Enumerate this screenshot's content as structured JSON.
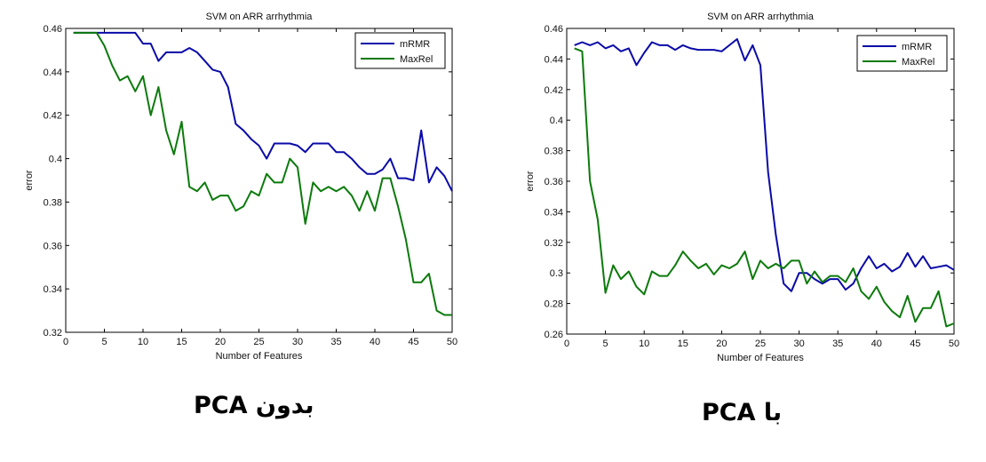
{
  "chart_data": [
    {
      "type": "line",
      "title": "SVM on ARR arrhythmia",
      "xlabel": "Number of Features",
      "ylabel": "error",
      "xlim": [
        0,
        50
      ],
      "ylim": [
        0.32,
        0.46
      ],
      "xticks": [
        0,
        5,
        10,
        15,
        20,
        25,
        30,
        35,
        40,
        45,
        50
      ],
      "xtick_labels": [
        "0",
        "5",
        "10",
        "15",
        "20",
        "25",
        "30",
        "35",
        "40",
        "45",
        "50"
      ],
      "yticks": [
        0.32,
        0.34,
        0.36,
        0.38,
        0.4,
        0.42,
        0.44,
        0.46
      ],
      "ytick_labels": [
        "0.32",
        "0.34",
        "0.36",
        "0.38",
        "0.4",
        "0.42",
        "0.44",
        "0.46"
      ],
      "grid": false,
      "legend_position": "top-right",
      "x": [
        1,
        2,
        3,
        4,
        5,
        6,
        7,
        8,
        9,
        10,
        11,
        12,
        13,
        14,
        15,
        16,
        17,
        18,
        19,
        20,
        21,
        22,
        23,
        24,
        25,
        26,
        27,
        28,
        29,
        30,
        31,
        32,
        33,
        34,
        35,
        36,
        37,
        38,
        39,
        40,
        41,
        42,
        43,
        44,
        45,
        46,
        47,
        48,
        49,
        50
      ],
      "series": [
        {
          "name": "mRMR",
          "color": "#0a0aa8",
          "values": [
            0.458,
            0.458,
            0.458,
            0.458,
            0.458,
            0.458,
            0.458,
            0.458,
            0.458,
            0.453,
            0.453,
            0.445,
            0.449,
            0.449,
            0.449,
            0.451,
            0.449,
            0.445,
            0.441,
            0.44,
            0.433,
            0.416,
            0.413,
            0.409,
            0.406,
            0.4,
            0.407,
            0.407,
            0.407,
            0.406,
            0.403,
            0.407,
            0.407,
            0.407,
            0.403,
            0.403,
            0.4,
            0.396,
            0.393,
            0.393,
            0.395,
            0.4,
            0.391,
            0.391,
            0.39,
            0.413,
            0.389,
            0.396,
            0.392,
            0.385
          ]
        },
        {
          "name": "MaxRel",
          "color": "#0c7a0c",
          "values": [
            0.458,
            0.458,
            0.458,
            0.458,
            0.452,
            0.443,
            0.436,
            0.438,
            0.431,
            0.438,
            0.42,
            0.433,
            0.413,
            0.402,
            0.417,
            0.387,
            0.385,
            0.389,
            0.381,
            0.383,
            0.383,
            0.376,
            0.378,
            0.385,
            0.383,
            0.393,
            0.389,
            0.389,
            0.4,
            0.396,
            0.37,
            0.389,
            0.385,
            0.387,
            0.385,
            0.387,
            0.383,
            0.376,
            0.385,
            0.376,
            0.391,
            0.391,
            0.378,
            0.363,
            0.343,
            0.343,
            0.347,
            0.33,
            0.328,
            0.328
          ]
        }
      ]
    },
    {
      "type": "line",
      "title": "SVM on ARR arrhythmia",
      "xlabel": "Number of Features",
      "ylabel": "error",
      "xlim": [
        0,
        50
      ],
      "ylim": [
        0.26,
        0.46
      ],
      "xticks": [
        0,
        5,
        10,
        15,
        20,
        25,
        30,
        35,
        40,
        45,
        50
      ],
      "xtick_labels": [
        "0",
        "5",
        "10",
        "15",
        "20",
        "25",
        "30",
        "35",
        "40",
        "45",
        "50"
      ],
      "yticks": [
        0.26,
        0.28,
        0.3,
        0.32,
        0.34,
        0.36,
        0.38,
        0.4,
        0.42,
        0.44,
        0.46
      ],
      "ytick_labels": [
        "0.26",
        "0.28",
        "0.3",
        "0.32",
        "0.34",
        "0.36",
        "0.38",
        "0.4",
        "0.42",
        "0.44",
        "0.46"
      ],
      "grid": false,
      "legend_position": "top-right",
      "x": [
        1,
        2,
        3,
        4,
        5,
        6,
        7,
        8,
        9,
        10,
        11,
        12,
        13,
        14,
        15,
        16,
        17,
        18,
        19,
        20,
        21,
        22,
        23,
        24,
        25,
        26,
        27,
        28,
        29,
        30,
        31,
        32,
        33,
        34,
        35,
        36,
        37,
        38,
        39,
        40,
        41,
        42,
        43,
        44,
        45,
        46,
        47,
        48,
        49,
        50
      ],
      "series": [
        {
          "name": "mRMR",
          "color": "#0a0aa8",
          "values": [
            0.449,
            0.451,
            0.449,
            0.451,
            0.447,
            0.449,
            0.445,
            0.447,
            0.436,
            0.444,
            0.451,
            0.449,
            0.449,
            0.446,
            0.449,
            0.447,
            0.446,
            0.446,
            0.446,
            0.445,
            0.449,
            0.453,
            0.439,
            0.449,
            0.436,
            0.366,
            0.325,
            0.293,
            0.288,
            0.3,
            0.3,
            0.296,
            0.293,
            0.296,
            0.296,
            0.289,
            0.293,
            0.303,
            0.311,
            0.303,
            0.306,
            0.301,
            0.304,
            0.313,
            0.304,
            0.311,
            0.303,
            0.304,
            0.305,
            0.302
          ]
        },
        {
          "name": "MaxRel",
          "color": "#0c7a0c",
          "values": [
            0.447,
            0.445,
            0.36,
            0.335,
            0.287,
            0.305,
            0.296,
            0.301,
            0.291,
            0.286,
            0.301,
            0.298,
            0.298,
            0.305,
            0.314,
            0.308,
            0.303,
            0.306,
            0.299,
            0.305,
            0.303,
            0.306,
            0.314,
            0.296,
            0.308,
            0.303,
            0.306,
            0.303,
            0.308,
            0.308,
            0.293,
            0.301,
            0.294,
            0.298,
            0.298,
            0.294,
            0.303,
            0.288,
            0.283,
            0.291,
            0.281,
            0.275,
            0.271,
            0.285,
            0.268,
            0.277,
            0.277,
            0.288,
            0.265,
            0.267
          ]
        }
      ]
    }
  ],
  "captions": {
    "left": "بدون PCA",
    "right": "با  PCA"
  }
}
